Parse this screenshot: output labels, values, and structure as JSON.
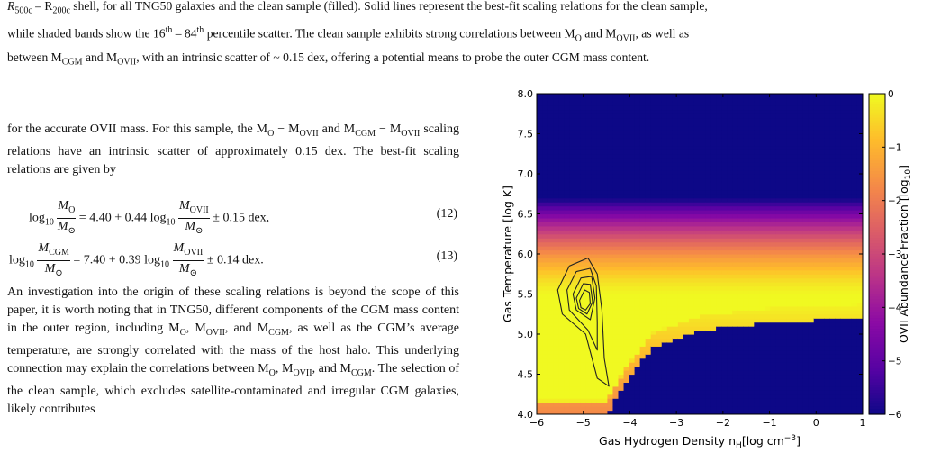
{
  "caption": {
    "line1_pre": "R",
    "line1_a": "500c",
    "line1_mid": " – R",
    "line1_b": "200c",
    "line1_rest": " shell, for all TNG50 galaxies and the clean sample (filled). Solid lines represent the best-fit scaling relations for the clean sample,",
    "line2_a": "while shaded bands show the 16",
    "line2_sup1": "th",
    "line2_b": " – 84",
    "line2_sup2": "th",
    "line2_c": " percentile scatter. The clean sample exhibits strong correlations between M",
    "line2_sub1": "O",
    "line2_d": " and M",
    "line2_sub2": "OVII",
    "line2_e": ", as well as",
    "line3_a": "between M",
    "line3_sub1": "CGM",
    "line3_b": " and M",
    "line3_sub2": "OVII",
    "line3_c": ", with an intrinsic scatter of ~ 0.15 dex, offering a potential means to probe the outer CGM mass content."
  },
  "body": {
    "p1_a": "for the accurate OVII mass. For this sample, the M",
    "p1_sub1": "O",
    "p1_b": " − M",
    "p1_sub2": "OVII",
    "p1_c": " and M",
    "p1_sub3": "CGM",
    "p1_d": " − M",
    "p1_sub4": "OVII",
    "p1_e": " scaling relations have an intrinsic scatter of approximately 0.15 dex. The best-fit scaling relations are given by",
    "eq12": {
      "log": "log",
      "base": "10",
      "num_top": "M",
      "num_top_sub": "O",
      "den": "M",
      "den_sub": "⊙",
      "mid": " = 4.40 + 0.44 log",
      "rhs_top": "M",
      "rhs_top_sub": "OVII",
      "tail": " ± 0.15 dex,",
      "label": "(12)"
    },
    "eq13": {
      "log": "log",
      "base": "10",
      "num_top": "M",
      "num_top_sub": "CGM",
      "den": "M",
      "den_sub": "⊙",
      "mid": " = 7.40 + 0.39 log",
      "rhs_top": "M",
      "rhs_top_sub": "OVII",
      "tail": " ± 0.14 dex.",
      "label": "(13)"
    },
    "p2_a": "An investigation into the origin of these scaling relations is beyond the scope of this paper, it is worth noting that in TNG50, different components of the CGM mass content in the outer region, including M",
    "p2_sub1": "O",
    "p2_b": ", M",
    "p2_sub2": "OVII",
    "p2_c": ", and M",
    "p2_sub3": "CGM",
    "p2_d": ", as well as the CGM’s average temperature, are strongly correlated with the mass of the host halo. This underlying connection may explain the correlations between M",
    "p2_sub4": "O",
    "p2_e": ", M",
    "p2_sub5": "OVII",
    "p2_f": ", and M",
    "p2_sub6": "CGM",
    "p2_g": ". The selection of the clean sample, which excludes satellite-contaminated and irregular CGM galaxies, likely contributes"
  },
  "chart_data": {
    "type": "heatmap",
    "xlabel": "Gas Hydrogen Density n",
    "xlabel_sub": "H",
    "xlabel_unit": "[log cm",
    "xlabel_exp": "−3",
    "xlabel_close": "]",
    "ylabel": "Gas Temperature [log K]",
    "xlim": [
      -6,
      1
    ],
    "ylim": [
      4.0,
      8.0
    ],
    "xticks": [
      "−6",
      "−5",
      "−4",
      "−3",
      "−2",
      "−1",
      "0",
      "1"
    ],
    "xtick_values": [
      -6,
      -5,
      -4,
      -3,
      -2,
      -1,
      0,
      1
    ],
    "yticks": [
      "4.0",
      "4.5",
      "5.0",
      "5.5",
      "6.0",
      "6.5",
      "7.0",
      "7.5",
      "8.0"
    ],
    "ytick_values": [
      4.0,
      4.5,
      5.0,
      5.5,
      6.0,
      6.5,
      7.0,
      7.5,
      8.0
    ],
    "colorbar": {
      "label": "OVII Abundance Fraction [log",
      "label_sub": "10",
      "label_close": "]",
      "range": [
        -6,
        0
      ],
      "ticks": [
        "0",
        "−1",
        "−2",
        "−3",
        "−4",
        "−5",
        "−6"
      ],
      "tick_values": [
        0,
        -1,
        -2,
        -3,
        -4,
        -5,
        -6
      ]
    },
    "field": {
      "peak_log_T": 5.45,
      "peak_value": 0,
      "upper_falloff_to": -6,
      "upper_falloff_at_log_T": 6.7,
      "photoionized_edge_at": [
        [
          -6,
          4.0
        ],
        [
          -4.5,
          4.0
        ],
        [
          -4.1,
          4.4
        ],
        [
          -3.5,
          4.85
        ],
        [
          -2.5,
          5.05
        ],
        [
          -1,
          5.15
        ],
        [
          1,
          5.2
        ]
      ]
    },
    "contours": [
      [
        [
          -5.55,
          5.55
        ],
        [
          -5.3,
          5.85
        ],
        [
          -4.9,
          5.95
        ],
        [
          -4.7,
          5.75
        ],
        [
          -4.6,
          5.3
        ],
        [
          -4.55,
          4.7
        ],
        [
          -4.45,
          4.35
        ],
        [
          -4.7,
          4.45
        ],
        [
          -4.95,
          5.0
        ],
        [
          -5.45,
          5.25
        ]
      ],
      [
        [
          -5.35,
          5.55
        ],
        [
          -5.15,
          5.78
        ],
        [
          -4.85,
          5.82
        ],
        [
          -4.72,
          5.6
        ],
        [
          -4.7,
          5.15
        ],
        [
          -4.7,
          4.8
        ],
        [
          -4.9,
          5.05
        ],
        [
          -5.3,
          5.3
        ]
      ],
      [
        [
          -5.22,
          5.5
        ],
        [
          -5.05,
          5.7
        ],
        [
          -4.82,
          5.72
        ],
        [
          -4.75,
          5.45
        ],
        [
          -4.85,
          5.18
        ],
        [
          -5.15,
          5.3
        ]
      ],
      [
        [
          -5.15,
          5.45
        ],
        [
          -5.0,
          5.63
        ],
        [
          -4.85,
          5.62
        ],
        [
          -4.8,
          5.4
        ],
        [
          -4.92,
          5.25
        ],
        [
          -5.1,
          5.32
        ]
      ],
      [
        [
          -5.08,
          5.42
        ],
        [
          -4.97,
          5.55
        ],
        [
          -4.87,
          5.52
        ],
        [
          -4.85,
          5.38
        ],
        [
          -4.95,
          5.3
        ],
        [
          -5.05,
          5.33
        ]
      ]
    ]
  }
}
